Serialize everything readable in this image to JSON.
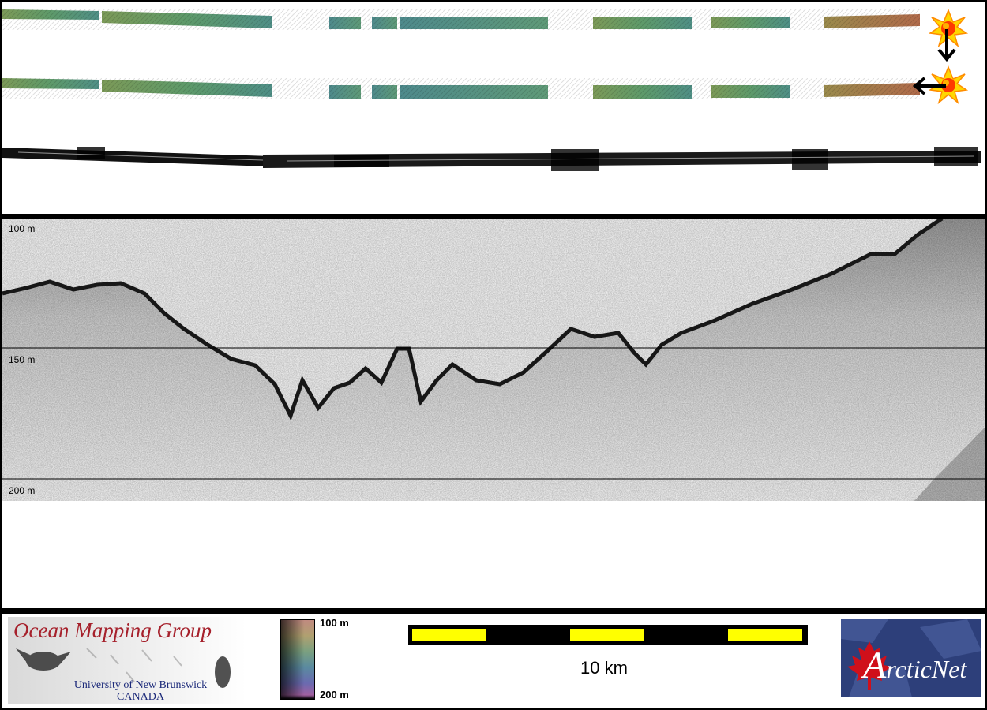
{
  "profile": {
    "depth_labels": [
      "100 m",
      "150 m",
      "200 m"
    ]
  },
  "legend": {
    "colorbar_top": "100 m",
    "colorbar_bottom": "200 m",
    "scale_bar_label": "10 km",
    "scale_bar_colors": [
      "#ffff00",
      "#000000"
    ]
  },
  "logos": {
    "omg_title": "Ocean Mapping Group",
    "omg_line1": "University of New Brunswick",
    "omg_line2": "CANADA",
    "arcticnet_a": "A",
    "arcticnet_rest": "rcticNet"
  },
  "icons": [
    "sun-icon",
    "arrow-down-icon",
    "arrow-left-icon",
    "maple-leaf-icon"
  ]
}
